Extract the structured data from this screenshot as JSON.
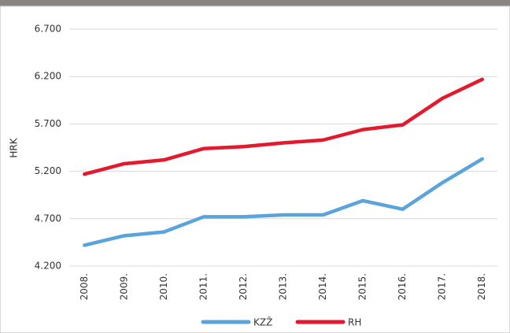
{
  "chart_data": {
    "type": "line",
    "categories": [
      "2008.",
      "2009.",
      "2010.",
      "2011.",
      "2012.",
      "2013.",
      "2014.",
      "2015.",
      "2016.",
      "2017.",
      "2018."
    ],
    "series": [
      {
        "name": "KZŽ",
        "color": "#5ba4db",
        "values": [
          4420,
          4520,
          4560,
          4720,
          4720,
          4740,
          4740,
          4890,
          4800,
          5080,
          5330
        ]
      },
      {
        "name": "RH",
        "color": "#e3192e",
        "values": [
          5170,
          5280,
          5320,
          5440,
          5460,
          5500,
          5530,
          5640,
          5690,
          5970,
          6170
        ]
      }
    ],
    "ylabel": "HRK",
    "ylim": [
      4200,
      6700
    ],
    "yticks": [
      {
        "value": 4200,
        "label": "4.200"
      },
      {
        "value": 4700,
        "label": "4.700"
      },
      {
        "value": 5200,
        "label": "5.200"
      },
      {
        "value": 5700,
        "label": "5.700"
      },
      {
        "value": 6200,
        "label": "6.200"
      },
      {
        "value": 6700,
        "label": "6.700"
      }
    ],
    "grid": true,
    "legend": "bottom"
  }
}
